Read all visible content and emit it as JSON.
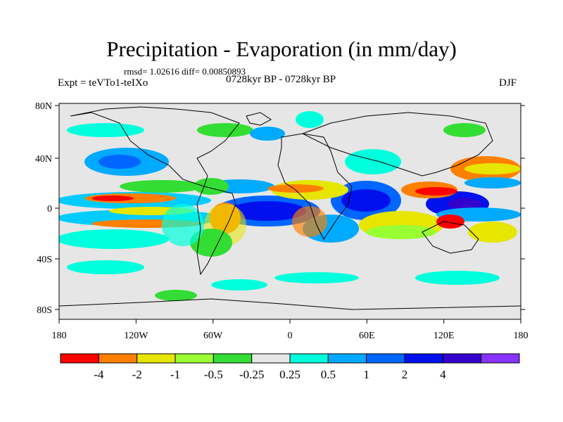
{
  "title": "Precipitation - Evaporation (in mm/day)",
  "stats": "rmsd= 1.02616 diff= 0.00850893",
  "experiment": "Expt = teVTo1-teIXo",
  "period": "0728kyr BP - 0728kyr BP",
  "season": "DJF",
  "map": {
    "projection": "equirectangular",
    "background_color": "#e6e6e6",
    "lat_ticks": [
      "80N",
      "40N",
      "0",
      "40S",
      "80S"
    ],
    "lon_ticks": [
      "180",
      "120W",
      "60W",
      "0",
      "60E",
      "120E",
      "180"
    ]
  },
  "colorbar": {
    "colors": [
      "#ff0000",
      "#ff8000",
      "#e6e600",
      "#99ff33",
      "#33dd33",
      "#e6e6e6",
      "#00ffdd",
      "#00aaff",
      "#0066ff",
      "#0011ee",
      "#3300cc",
      "#8833ff"
    ],
    "labels": [
      "-4",
      "-2",
      "-1",
      "-0.5",
      "-0.25",
      "0.25",
      "0.5",
      "1",
      "2",
      "4"
    ]
  }
}
